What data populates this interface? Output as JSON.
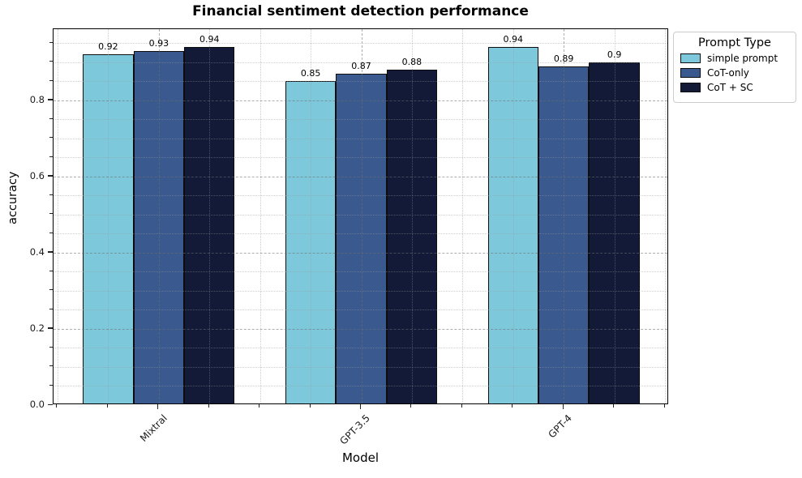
{
  "chart_data": {
    "type": "bar",
    "title": "Financial sentiment detection performance",
    "xlabel": "Model",
    "ylabel": "accuracy",
    "categories": [
      "Mixtral",
      "GPT-3.5",
      "GPT-4"
    ],
    "series": [
      {
        "name": "simple prompt",
        "color": "#7ec8db",
        "values": [
          0.92,
          0.85,
          0.94
        ],
        "value_labels": [
          "0.92",
          "0.85",
          "0.94"
        ]
      },
      {
        "name": "CoT-only",
        "color": "#3a5a8f",
        "values": [
          0.93,
          0.87,
          0.89
        ],
        "value_labels": [
          "0.93",
          "0.87",
          "0.89"
        ]
      },
      {
        "name": "CoT + SC",
        "color": "#121a38",
        "values": [
          0.94,
          0.88,
          0.9
        ],
        "value_labels": [
          "0.94",
          "0.88",
          "0.9"
        ]
      }
    ],
    "legend_title": "Prompt Type",
    "legend_position": "outside-top-right",
    "ylim": [
      0,
      0.987
    ],
    "yticks": [
      0,
      0.2,
      0.4,
      0.6,
      0.8
    ],
    "ytick_labels": [
      "0.0",
      "0.2",
      "0.4",
      "0.6",
      "0.8"
    ],
    "y_minor_step": 0.05,
    "x_minor_step": 0.25,
    "grid": true,
    "bar_edge_color": "#0d0d0d"
  }
}
